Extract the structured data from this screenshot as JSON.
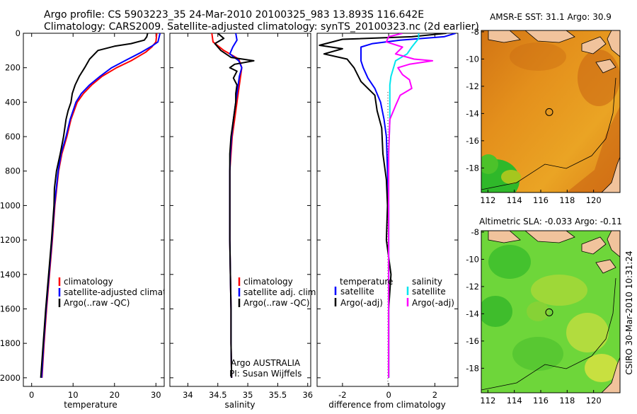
{
  "header": {
    "line1": "Argo profile: CS 5903223_35 24-Mar-2010 20100325_983 13.893S 116.642E",
    "line2": "Climatology: CARS2009. Satellite-adjusted climatology: synTS_20100323.nc (2d earlier)"
  },
  "colors": {
    "climatology": "#ff0000",
    "satellite": "#0000ff",
    "argo": "#000000",
    "satellite_salinity": "#00e5ee",
    "argo_adj_salinity": "#ff00ff"
  },
  "chart_data": [
    {
      "type": "line",
      "id": "temperature",
      "xlabel": "temperature",
      "ylabel": "",
      "xlim": [
        -2,
        32
      ],
      "ylim": [
        2050,
        0
      ],
      "xticks": [
        "0",
        "10",
        "20",
        "30"
      ],
      "xtick_values": [
        0,
        10,
        20,
        30
      ],
      "yticks": [
        "0",
        "200",
        "400",
        "600",
        "800",
        "1000",
        "1200",
        "1400",
        "1600",
        "1800",
        "2000"
      ],
      "ytick_values": [
        0,
        200,
        400,
        600,
        800,
        1000,
        1200,
        1400,
        1600,
        1800,
        2000
      ],
      "legend": [
        "climatology",
        "satellite-adjusted climatology",
        "Argo(..raw -QC)"
      ],
      "series": [
        {
          "name": "climatology",
          "color": "#ff0000",
          "points": [
            [
              30.2,
              0
            ],
            [
              30,
              50
            ],
            [
              29,
              80
            ],
            [
              27.5,
              110
            ],
            [
              24,
              160
            ],
            [
              20.5,
              200
            ],
            [
              17,
              250
            ],
            [
              14.5,
              300
            ],
            [
              12.5,
              350
            ],
            [
              11,
              400
            ],
            [
              9.5,
              500
            ],
            [
              8.5,
              600
            ],
            [
              7.3,
              700
            ],
            [
              6.5,
              800
            ],
            [
              5.6,
              1000
            ],
            [
              5,
              1200
            ],
            [
              4.3,
              1400
            ],
            [
              3.6,
              1600
            ],
            [
              3,
              1800
            ],
            [
              2.5,
              2000
            ]
          ]
        },
        {
          "name": "satellite-adjusted climatology",
          "color": "#0000ff",
          "points": [
            [
              31,
              0
            ],
            [
              30.5,
              50
            ],
            [
              29,
              75
            ],
            [
              26.5,
              110
            ],
            [
              22.5,
              160
            ],
            [
              19.3,
              200
            ],
            [
              16.5,
              250
            ],
            [
              14,
              300
            ],
            [
              12,
              350
            ],
            [
              10.7,
              400
            ],
            [
              9.3,
              500
            ],
            [
              8.3,
              600
            ],
            [
              7.1,
              700
            ],
            [
              6.4,
              800
            ],
            [
              5.5,
              1000
            ],
            [
              4.9,
              1200
            ],
            [
              4.2,
              1400
            ],
            [
              3.5,
              1600
            ],
            [
              2.9,
              1800
            ],
            [
              2.4,
              2000
            ]
          ]
        },
        {
          "name": "Argo(..raw -QC)",
          "color": "#000000",
          "points": [
            [
              28,
              0
            ],
            [
              27.8,
              20
            ],
            [
              27.2,
              40
            ],
            [
              24,
              60
            ],
            [
              20,
              75
            ],
            [
              16,
              100
            ],
            [
              14,
              150
            ],
            [
              12.8,
              200
            ],
            [
              11.5,
              250
            ],
            [
              10.5,
              300
            ],
            [
              9.8,
              350
            ],
            [
              9.5,
              400
            ],
            [
              8.8,
              450
            ],
            [
              8.3,
              500
            ],
            [
              7.7,
              600
            ],
            [
              6.9,
              700
            ],
            [
              6,
              800
            ],
            [
              5.5,
              900
            ],
            [
              5.4,
              1000
            ],
            [
              4.8,
              1200
            ],
            [
              4.1,
              1400
            ],
            [
              3.4,
              1600
            ],
            [
              2.8,
              1800
            ],
            [
              2.2,
              2000
            ]
          ]
        }
      ],
      "annotations": []
    },
    {
      "type": "line",
      "id": "salinity",
      "xlabel": "salinity",
      "xlim": [
        33.7,
        36.05
      ],
      "ylim": [
        2050,
        0
      ],
      "xticks": [
        "34",
        "34.5",
        "35",
        "35.5",
        "36"
      ],
      "xtick_values": [
        34,
        34.5,
        35,
        35.5,
        36
      ],
      "legend": [
        "climatology",
        "satellite adj. clim.",
        "Argo(..raw -QC)"
      ],
      "series": [
        {
          "name": "climatology",
          "color": "#ff0000",
          "points": [
            [
              34.4,
              0
            ],
            [
              34.42,
              50
            ],
            [
              34.6,
              100
            ],
            [
              34.85,
              150
            ],
            [
              34.9,
              200
            ],
            [
              34.88,
              250
            ],
            [
              34.86,
              300
            ],
            [
              34.82,
              400
            ],
            [
              34.78,
              500
            ],
            [
              34.74,
              600
            ],
            [
              34.72,
              700
            ],
            [
              34.7,
              800
            ],
            [
              34.7,
              1000
            ],
            [
              34.7,
              1200
            ],
            [
              34.71,
              1400
            ],
            [
              34.72,
              1600
            ],
            [
              34.72,
              1800
            ],
            [
              34.73,
              2000
            ]
          ]
        },
        {
          "name": "satellite adj. clim.",
          "color": "#0000ff",
          "points": [
            [
              34.8,
              0
            ],
            [
              34.82,
              40
            ],
            [
              34.75,
              80
            ],
            [
              34.7,
              120
            ],
            [
              34.85,
              160
            ],
            [
              34.9,
              200
            ],
            [
              34.86,
              250
            ],
            [
              34.84,
              300
            ],
            [
              34.8,
              400
            ],
            [
              34.76,
              500
            ],
            [
              34.73,
              600
            ],
            [
              34.71,
              700
            ],
            [
              34.7,
              800
            ],
            [
              34.7,
              1000
            ],
            [
              34.7,
              1200
            ],
            [
              34.71,
              1400
            ],
            [
              34.72,
              1600
            ],
            [
              34.72,
              1800
            ],
            [
              34.73,
              2000
            ]
          ]
        },
        {
          "name": "Argo(..raw -QC)",
          "color": "#000000",
          "points": [
            [
              34.5,
              0
            ],
            [
              34.6,
              30
            ],
            [
              34.45,
              60
            ],
            [
              34.55,
              100
            ],
            [
              34.72,
              140
            ],
            [
              35.1,
              160
            ],
            [
              34.78,
              180
            ],
            [
              34.7,
              200
            ],
            [
              34.82,
              220
            ],
            [
              34.76,
              260
            ],
            [
              34.82,
              300
            ],
            [
              34.8,
              350
            ],
            [
              34.8,
              400
            ],
            [
              34.76,
              500
            ],
            [
              34.72,
              600
            ],
            [
              34.7,
              700
            ],
            [
              34.7,
              800
            ],
            [
              34.7,
              1000
            ],
            [
              34.7,
              1200
            ],
            [
              34.71,
              1400
            ],
            [
              34.72,
              1600
            ],
            [
              34.72,
              1800
            ],
            [
              34.73,
              2000
            ]
          ]
        }
      ],
      "annotations": [
        "Argo AUSTRALIA",
        "PI: Susan Wijffels"
      ]
    },
    {
      "type": "line",
      "id": "difference",
      "xlabel": "difference from climatology",
      "xlim": [
        -3.1,
        3.0
      ],
      "ylim": [
        2050,
        0
      ],
      "xticks": [
        "-2",
        "0",
        "2"
      ],
      "xtick_values": [
        -2,
        0,
        2
      ],
      "legend_groups": [
        {
          "title": "temperature",
          "items": [
            "satellite",
            "Argo(-adj)"
          ]
        },
        {
          "title": "salinity",
          "items": [
            "satellite",
            "Argo(-adj)"
          ]
        }
      ],
      "series": [
        {
          "name": "temperature satellite",
          "color": "#0000ff",
          "points": [
            [
              2.9,
              0
            ],
            [
              2.4,
              20
            ],
            [
              0.5,
              40
            ],
            [
              -0.7,
              60
            ],
            [
              -1.2,
              80
            ],
            [
              -1.2,
              120
            ],
            [
              -1.2,
              160
            ],
            [
              -1.1,
              200
            ],
            [
              -0.9,
              260
            ],
            [
              -0.6,
              320
            ],
            [
              -0.35,
              400
            ],
            [
              -0.2,
              500
            ],
            [
              -0.1,
              600
            ],
            [
              -0.05,
              800
            ],
            [
              0,
              1000
            ],
            [
              0,
              1400
            ],
            [
              0,
              1800
            ],
            [
              0,
              2000
            ]
          ]
        },
        {
          "name": "temperature Argo(-adj)",
          "color": "#000000",
          "points": [
            [
              2.5,
              0
            ],
            [
              1,
              20
            ],
            [
              -2,
              35
            ],
            [
              -3,
              70
            ],
            [
              -2,
              90
            ],
            [
              -2.8,
              120
            ],
            [
              -1.8,
              150
            ],
            [
              -1.5,
              200
            ],
            [
              -1.2,
              280
            ],
            [
              -0.6,
              360
            ],
            [
              -0.5,
              450
            ],
            [
              -0.3,
              550
            ],
            [
              -0.25,
              700
            ],
            [
              -0.1,
              850
            ],
            [
              -0.05,
              1000
            ],
            [
              -0.1,
              1200
            ],
            [
              0.1,
              1400
            ],
            [
              0,
              1600
            ],
            [
              0,
              1800
            ],
            [
              0,
              2000
            ]
          ]
        },
        {
          "name": "salinity satellite",
          "color": "#00e5ee",
          "points": [
            [
              1.3,
              0
            ],
            [
              1.3,
              30
            ],
            [
              1.0,
              80
            ],
            [
              0.8,
              120
            ],
            [
              0.3,
              160
            ],
            [
              0.1,
              250
            ],
            [
              0.05,
              300
            ],
            [
              0.05,
              500
            ],
            [
              0,
              700
            ],
            [
              0,
              1200
            ],
            [
              0,
              1500
            ],
            [
              0,
              2000
            ]
          ]
        },
        {
          "name": "salinity Argo(-adj)",
          "color": "#ff00ff",
          "points": [
            [
              0.6,
              0
            ],
            [
              0,
              20
            ],
            [
              -0.1,
              50
            ],
            [
              0.6,
              80
            ],
            [
              0.3,
              120
            ],
            [
              1.1,
              150
            ],
            [
              1.9,
              160
            ],
            [
              0.9,
              180
            ],
            [
              0.4,
              200
            ],
            [
              0.6,
              240
            ],
            [
              0.9,
              270
            ],
            [
              1.0,
              320
            ],
            [
              0.5,
              360
            ],
            [
              0.3,
              420
            ],
            [
              0.05,
              500
            ],
            [
              0,
              700
            ],
            [
              0,
              1200
            ],
            [
              0,
              1500
            ],
            [
              0,
              2000
            ]
          ]
        }
      ],
      "annotations": []
    }
  ],
  "maps": [
    {
      "id": "sst-map",
      "title": "AMSR-E SST: 31.1 Argo: 30.9",
      "xticks": [
        "112",
        "114",
        "116",
        "118",
        "120"
      ],
      "xtick_values": [
        112,
        114,
        116,
        118,
        120
      ],
      "yticks": [
        "-8",
        "-10",
        "-12",
        "-14",
        "-16",
        "-18"
      ],
      "ytick_values": [
        -8,
        -10,
        -12,
        -14,
        -16,
        -18
      ],
      "xlim": [
        111.5,
        122
      ],
      "ylim": [
        -19.8,
        -7.9
      ],
      "profile_location": {
        "lon": 116.642,
        "lat": -13.893
      }
    },
    {
      "id": "sla-map",
      "title": "Altimetric SLA: -0.033 Argo: -0.11",
      "xticks": [
        "112",
        "114",
        "116",
        "118",
        "120"
      ],
      "xtick_values": [
        112,
        114,
        116,
        118,
        120
      ],
      "yticks": [
        "-8",
        "-10",
        "-12",
        "-14",
        "-16",
        "-18"
      ],
      "ytick_values": [
        -8,
        -10,
        -12,
        -14,
        -16,
        -18
      ],
      "xlim": [
        111.5,
        122
      ],
      "ylim": [
        -19.8,
        -7.9
      ],
      "profile_location": {
        "lon": 116.642,
        "lat": -13.893
      }
    }
  ],
  "footer": {
    "stamp": "CSIRO 30-Mar-2010 10:31:24"
  }
}
